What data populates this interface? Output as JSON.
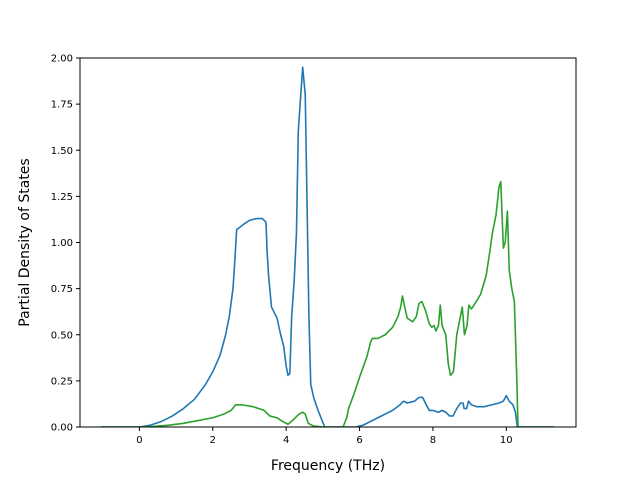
{
  "chart_data": {
    "type": "line",
    "xlabel": "Frequency (THz)",
    "ylabel": "Partial Density of States",
    "xlim": [
      -1.62,
      11.9
    ],
    "ylim": [
      0.0,
      2.0
    ],
    "xticks": [
      0,
      2,
      4,
      6,
      8,
      10
    ],
    "xtick_labels": [
      "0",
      "2",
      "4",
      "6",
      "8",
      "10"
    ],
    "yticks": [
      0.0,
      0.25,
      0.5,
      0.75,
      1.0,
      1.25,
      1.5,
      1.75,
      2.0
    ],
    "ytick_labels": [
      "0.00",
      "0.25",
      "0.50",
      "0.75",
      "1.00",
      "1.25",
      "1.50",
      "1.75",
      "2.00"
    ],
    "grid": false,
    "legend": "none",
    "series": [
      {
        "color": "#1f77b4",
        "points": [
          [
            -1.05,
            0
          ],
          [
            0,
            0
          ],
          [
            0.3,
            0.01
          ],
          [
            0.6,
            0.03
          ],
          [
            0.9,
            0.06
          ],
          [
            1.2,
            0.1
          ],
          [
            1.5,
            0.15
          ],
          [
            1.8,
            0.23
          ],
          [
            2.0,
            0.3
          ],
          [
            2.2,
            0.39
          ],
          [
            2.35,
            0.5
          ],
          [
            2.45,
            0.6
          ],
          [
            2.55,
            0.75
          ],
          [
            2.6,
            0.9
          ],
          [
            2.65,
            1.07
          ],
          [
            2.72,
            1.08
          ],
          [
            2.85,
            1.1
          ],
          [
            3.0,
            1.12
          ],
          [
            3.2,
            1.13
          ],
          [
            3.35,
            1.13
          ],
          [
            3.45,
            1.11
          ],
          [
            3.48,
            0.95
          ],
          [
            3.52,
            0.82
          ],
          [
            3.6,
            0.65
          ],
          [
            3.75,
            0.59
          ],
          [
            3.85,
            0.5
          ],
          [
            3.93,
            0.44
          ],
          [
            4.0,
            0.33
          ],
          [
            4.05,
            0.28
          ],
          [
            4.1,
            0.29
          ],
          [
            4.15,
            0.6
          ],
          [
            4.22,
            0.8
          ],
          [
            4.28,
            1.05
          ],
          [
            4.33,
            1.6
          ],
          [
            4.38,
            1.75
          ],
          [
            4.45,
            1.95
          ],
          [
            4.52,
            1.8
          ],
          [
            4.57,
            1.2
          ],
          [
            4.62,
            0.6
          ],
          [
            4.67,
            0.23
          ],
          [
            4.75,
            0.16
          ],
          [
            4.85,
            0.1
          ],
          [
            4.95,
            0.05
          ],
          [
            5.05,
            0
          ],
          [
            5.5,
            0
          ],
          [
            5.9,
            0
          ],
          [
            6.1,
            0.01
          ],
          [
            6.3,
            0.03
          ],
          [
            6.5,
            0.05
          ],
          [
            6.7,
            0.07
          ],
          [
            6.9,
            0.09
          ],
          [
            7.1,
            0.12
          ],
          [
            7.2,
            0.14
          ],
          [
            7.3,
            0.13
          ],
          [
            7.5,
            0.14
          ],
          [
            7.62,
            0.16
          ],
          [
            7.72,
            0.16
          ],
          [
            7.82,
            0.12
          ],
          [
            7.9,
            0.09
          ],
          [
            8.0,
            0.09
          ],
          [
            8.15,
            0.08
          ],
          [
            8.25,
            0.09
          ],
          [
            8.35,
            0.08
          ],
          [
            8.45,
            0.06
          ],
          [
            8.55,
            0.06
          ],
          [
            8.65,
            0.1
          ],
          [
            8.75,
            0.13
          ],
          [
            8.82,
            0.13
          ],
          [
            8.85,
            0.1
          ],
          [
            8.92,
            0.1
          ],
          [
            8.97,
            0.14
          ],
          [
            9.05,
            0.12
          ],
          [
            9.2,
            0.11
          ],
          [
            9.4,
            0.11
          ],
          [
            9.6,
            0.12
          ],
          [
            9.8,
            0.13
          ],
          [
            9.92,
            0.14
          ],
          [
            10.0,
            0.17
          ],
          [
            10.08,
            0.14
          ],
          [
            10.18,
            0.12
          ],
          [
            10.25,
            0.08
          ],
          [
            10.3,
            0
          ],
          [
            11.3,
            0
          ]
        ]
      },
      {
        "color": "#2ca02c",
        "points": [
          [
            -1.05,
            0
          ],
          [
            0,
            0
          ],
          [
            0.3,
            0.002
          ],
          [
            0.8,
            0.01
          ],
          [
            1.2,
            0.02
          ],
          [
            1.6,
            0.035
          ],
          [
            2.0,
            0.05
          ],
          [
            2.3,
            0.07
          ],
          [
            2.5,
            0.09
          ],
          [
            2.62,
            0.12
          ],
          [
            2.8,
            0.12
          ],
          [
            3.1,
            0.11
          ],
          [
            3.4,
            0.09
          ],
          [
            3.55,
            0.06
          ],
          [
            3.75,
            0.05
          ],
          [
            3.9,
            0.03
          ],
          [
            4.05,
            0.015
          ],
          [
            4.2,
            0.04
          ],
          [
            4.35,
            0.07
          ],
          [
            4.45,
            0.08
          ],
          [
            4.52,
            0.07
          ],
          [
            4.6,
            0.02
          ],
          [
            4.75,
            0.005
          ],
          [
            5.0,
            0
          ],
          [
            5.55,
            0
          ],
          [
            5.65,
            0.05
          ],
          [
            5.7,
            0.1
          ],
          [
            5.85,
            0.18
          ],
          [
            6.0,
            0.27
          ],
          [
            6.2,
            0.38
          ],
          [
            6.3,
            0.46
          ],
          [
            6.35,
            0.48
          ],
          [
            6.5,
            0.48
          ],
          [
            6.7,
            0.5
          ],
          [
            6.9,
            0.54
          ],
          [
            7.05,
            0.6
          ],
          [
            7.12,
            0.65
          ],
          [
            7.17,
            0.71
          ],
          [
            7.22,
            0.66
          ],
          [
            7.3,
            0.59
          ],
          [
            7.45,
            0.57
          ],
          [
            7.55,
            0.6
          ],
          [
            7.62,
            0.67
          ],
          [
            7.7,
            0.68
          ],
          [
            7.8,
            0.63
          ],
          [
            7.9,
            0.56
          ],
          [
            7.97,
            0.54
          ],
          [
            8.03,
            0.55
          ],
          [
            8.08,
            0.52
          ],
          [
            8.15,
            0.55
          ],
          [
            8.2,
            0.66
          ],
          [
            8.25,
            0.55
          ],
          [
            8.35,
            0.5
          ],
          [
            8.42,
            0.34
          ],
          [
            8.48,
            0.28
          ],
          [
            8.56,
            0.3
          ],
          [
            8.65,
            0.5
          ],
          [
            8.75,
            0.6
          ],
          [
            8.8,
            0.65
          ],
          [
            8.86,
            0.5
          ],
          [
            8.93,
            0.55
          ],
          [
            8.98,
            0.66
          ],
          [
            9.05,
            0.64
          ],
          [
            9.12,
            0.66
          ],
          [
            9.3,
            0.72
          ],
          [
            9.45,
            0.82
          ],
          [
            9.55,
            0.95
          ],
          [
            9.62,
            1.05
          ],
          [
            9.72,
            1.15
          ],
          [
            9.8,
            1.3
          ],
          [
            9.85,
            1.33
          ],
          [
            9.92,
            0.97
          ],
          [
            9.97,
            1.0
          ],
          [
            10.03,
            1.17
          ],
          [
            10.08,
            0.85
          ],
          [
            10.15,
            0.75
          ],
          [
            10.22,
            0.68
          ],
          [
            10.28,
            0.3
          ],
          [
            10.32,
            0
          ],
          [
            11.3,
            0
          ]
        ]
      }
    ]
  }
}
